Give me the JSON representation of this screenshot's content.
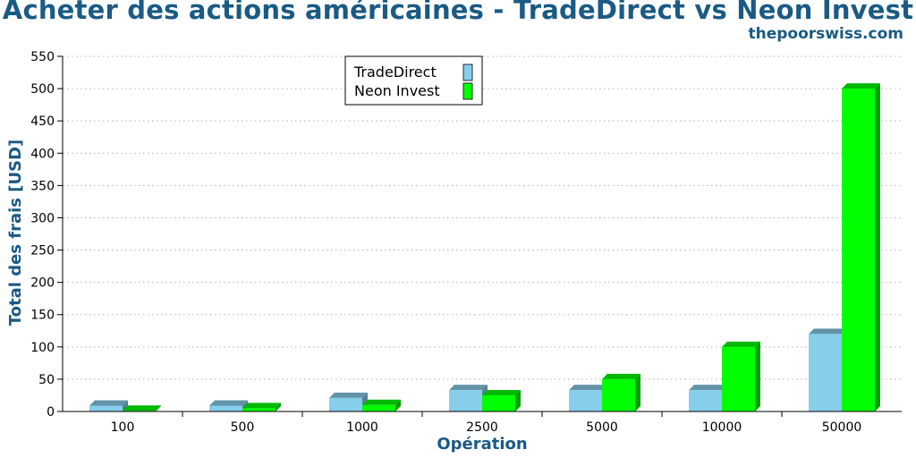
{
  "chart": {
    "title": "Acheter des actions américaines - TradeDirect vs Neon Invest",
    "subtitle": "thepoorswiss.com"
  },
  "chart_data": {
    "type": "bar",
    "title": "Acheter des actions américaines - TradeDirect vs Neon Invest",
    "subtitle": "thepoorswiss.com",
    "xlabel": "Opération",
    "ylabel": "Total des frais [USD]",
    "categories": [
      "100",
      "500",
      "1000",
      "2500",
      "5000",
      "10000",
      "50000"
    ],
    "series": [
      {
        "name": "TradeDirect",
        "values": [
          9,
          9,
          21,
          33,
          33,
          33,
          120
        ],
        "color": "#87ceeb"
      },
      {
        "name": "Neon Invest",
        "values": [
          1,
          5,
          10,
          25,
          50,
          100,
          500
        ],
        "color": "#00ff00"
      }
    ],
    "ylim": [
      0,
      550
    ],
    "yticks": [
      0,
      50,
      100,
      150,
      200,
      250,
      300,
      350,
      400,
      450,
      500,
      550
    ],
    "grid": true,
    "legend_position": "top-center",
    "style": "3d-bar",
    "colors": {
      "title": "#1a5a85",
      "grid": "#b0b0b0",
      "axis": "#000000"
    }
  }
}
